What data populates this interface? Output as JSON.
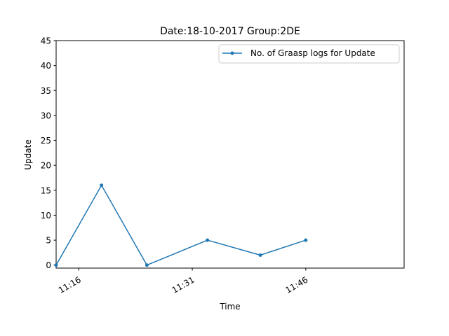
{
  "chart_data": {
    "type": "line",
    "title": "Date:18-10-2017  Group:2DE",
    "xlabel": "Time",
    "ylabel": "Update",
    "ylim": [
      -0.6,
      45
    ],
    "yticks": [
      0,
      5,
      10,
      15,
      20,
      25,
      30,
      35,
      40,
      45
    ],
    "xlim": [
      "11:13",
      "11:59"
    ],
    "xticks": [
      "11:16",
      "11:31",
      "11:46"
    ],
    "grid": false,
    "legend_position": "top-right",
    "series": [
      {
        "name": "No. of Graasp logs for Update",
        "color": "#1f77b4",
        "marker": "circle",
        "x": [
          "11:13",
          "11:19",
          "11:25",
          "11:33",
          "11:40",
          "11:46"
        ],
        "y": [
          0,
          16,
          0,
          5,
          2,
          5
        ]
      }
    ]
  }
}
